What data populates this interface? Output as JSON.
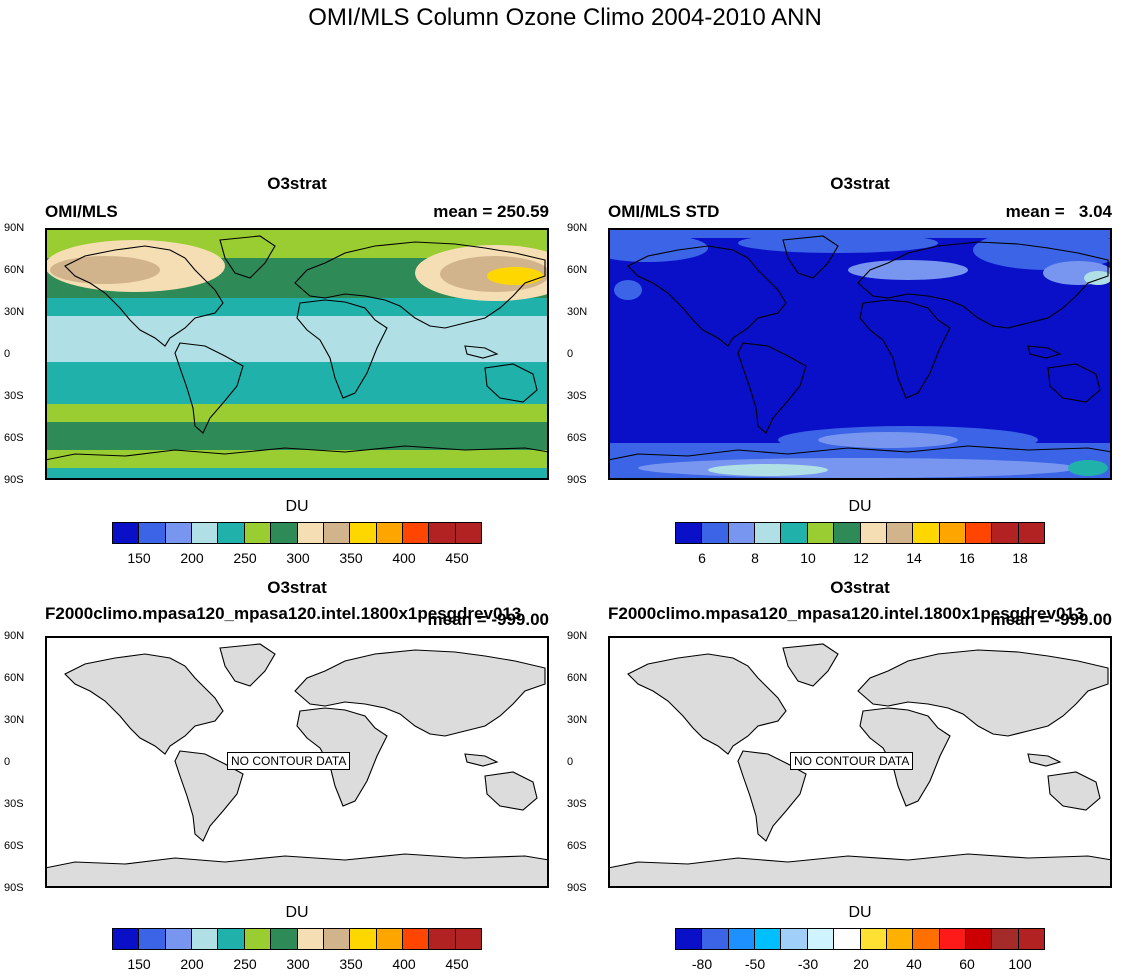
{
  "page_title": "OMI/MLS Column Ozone Climo 2004-2010 ANN",
  "lat_labels": [
    "90N",
    "60N",
    "30N",
    "0",
    "30S",
    "60S",
    "90S"
  ],
  "no_data_text": "NO CONTOUR DATA",
  "panels": [
    {
      "field": "O3strat",
      "left_label": "OMI/MLS",
      "right_label": "mean = 250.59",
      "colorbar_title": "DU",
      "colorbar_labels": [
        "150",
        "200",
        "250",
        "300",
        "350",
        "400",
        "450"
      ]
    },
    {
      "field": "O3strat",
      "left_label": "OMI/MLS STD",
      "right_label": "mean =   3.04",
      "colorbar_title": "DU",
      "colorbar_labels": [
        "6",
        "8",
        "10",
        "12",
        "14",
        "16",
        "18"
      ]
    },
    {
      "field": "O3strat",
      "left_label": "F2000climo.mpasa120_mpasa120.intel.1800x1pesgdrev013",
      "right_label": "mean = -999.00",
      "colorbar_title": "DU",
      "colorbar_labels": [
        "150",
        "200",
        "250",
        "300",
        "350",
        "400",
        "450"
      ]
    },
    {
      "field": "O3strat",
      "left_label": "F2000climo.mpasa120_mpasa120.intel.1800x1pesgdrev013",
      "right_label": "mean = -999.00",
      "colorbar_title": "DU",
      "colorbar_labels": [
        "-80",
        "-50",
        "-30",
        "20",
        "40",
        "60",
        "100"
      ]
    }
  ],
  "chart_data": [
    {
      "type": "heatmap",
      "title": "O3strat",
      "subtitle": "OMI/MLS",
      "mean": 250.59,
      "units": "DU",
      "ylim": [
        "90S",
        "90N"
      ],
      "levels": [
        150,
        175,
        200,
        225,
        250,
        275,
        300,
        325,
        350,
        375,
        400,
        425,
        450
      ],
      "colors": [
        "#0a10c8",
        "#3c64e6",
        "#7896f0",
        "#b0e0e6",
        "#20b2aa",
        "#9acd32",
        "#2e8b57",
        "#f5deb3",
        "#d2b48c",
        "#ffd700",
        "#ffa500",
        "#ff4500",
        "#b22222",
        "#b22222"
      ]
    },
    {
      "type": "heatmap",
      "title": "O3strat",
      "subtitle": "OMI/MLS STD",
      "mean": 3.04,
      "units": "DU",
      "ylim": [
        "90S",
        "90N"
      ],
      "levels": [
        6,
        7,
        8,
        9,
        10,
        11,
        12,
        13,
        14,
        15,
        16,
        17,
        18
      ],
      "colors": [
        "#0a10c8",
        "#3c64e6",
        "#7896f0",
        "#b0e0e6",
        "#20b2aa",
        "#9acd32",
        "#2e8b57",
        "#f5deb3",
        "#d2b48c",
        "#ffd700",
        "#ffa500",
        "#ff4500",
        "#b22222",
        "#b22222"
      ]
    },
    {
      "type": "heatmap",
      "title": "O3strat",
      "mean": -999.0,
      "units": "DU",
      "note": "NO CONTOUR DATA",
      "colors": [
        "#0a10c8",
        "#3c64e6",
        "#7896f0",
        "#b0e0e6",
        "#20b2aa",
        "#9acd32",
        "#2e8b57",
        "#f5deb3",
        "#d2b48c",
        "#ffd700",
        "#ffa500",
        "#ff4500",
        "#b22222",
        "#b22222"
      ]
    },
    {
      "type": "heatmap",
      "title": "O3strat",
      "mean": -999.0,
      "units": "DU",
      "note": "NO CONTOUR DATA",
      "levels": [
        -80,
        -70,
        -50,
        -40,
        -30,
        -20,
        20,
        30,
        40,
        50,
        60,
        80,
        100
      ],
      "colors": [
        "#0a10c8",
        "#3c64e6",
        "#1e90ff",
        "#00bfff",
        "#a0cff8",
        "#d0f4ff",
        "#ffffff",
        "#ffe033",
        "#ffb000",
        "#ff7000",
        "#ff1a1a",
        "#cc0000",
        "#a52a2a",
        "#b22222"
      ]
    }
  ]
}
